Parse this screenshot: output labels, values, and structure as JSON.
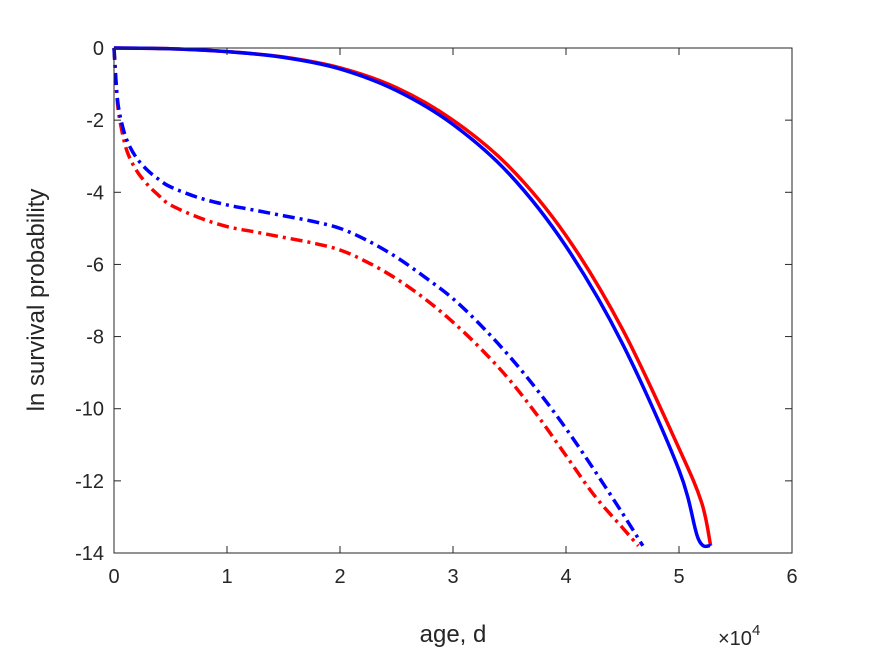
{
  "chart_data": {
    "type": "line",
    "title": "",
    "xlabel": "age, d",
    "ylabel": "ln survival probability",
    "x_exponent_label": "×10",
    "x_exponent_power": "4",
    "xlim": [
      0,
      60000
    ],
    "ylim": [
      -14,
      0
    ],
    "grid": false,
    "legend": "none",
    "x_ticks": [
      0,
      10000,
      20000,
      30000,
      40000,
      50000,
      60000
    ],
    "x_tick_labels": [
      "0",
      "1",
      "2",
      "3",
      "4",
      "5",
      "6"
    ],
    "y_ticks": [
      0,
      -2,
      -4,
      -6,
      -8,
      -10,
      -12,
      -14
    ],
    "y_tick_labels": [
      "0",
      "-2",
      "-4",
      "-6",
      "-8",
      "-10",
      "-12",
      "-14"
    ],
    "series": [
      {
        "color": "#ff0000",
        "style": "solid",
        "x": [
          0,
          5000,
          10000,
          15000,
          20000,
          25000,
          30000,
          35000,
          40000,
          45000,
          50000,
          52000,
          52800
        ],
        "y": [
          0,
          -0.02,
          -0.1,
          -0.25,
          -0.55,
          -1.1,
          -2.0,
          -3.3,
          -5.2,
          -7.8,
          -11.1,
          -12.6,
          -13.8
        ]
      },
      {
        "color": "#0000ff",
        "style": "solid",
        "x": [
          0,
          5000,
          10000,
          15000,
          20000,
          25000,
          30000,
          35000,
          40000,
          45000,
          50000,
          51700,
          52800
        ],
        "y": [
          0,
          -0.02,
          -0.1,
          -0.26,
          -0.58,
          -1.18,
          -2.12,
          -3.5,
          -5.5,
          -8.2,
          -11.7,
          -13.6,
          -13.8
        ]
      },
      {
        "color": "#ff0000",
        "style": "dashdot",
        "x": [
          0,
          300,
          700,
          1200,
          2000,
          3000,
          4000,
          5000,
          7500,
          10000,
          12500,
          15000,
          17500,
          20000,
          22500,
          25000,
          27500,
          30000,
          32500,
          35000,
          37500,
          40000,
          42500,
          45000,
          46400
        ],
        "y": [
          0,
          -1.5,
          -2.3,
          -2.9,
          -3.4,
          -3.8,
          -4.1,
          -4.35,
          -4.7,
          -4.95,
          -5.1,
          -5.25,
          -5.4,
          -5.6,
          -5.95,
          -6.4,
          -6.95,
          -7.6,
          -8.35,
          -9.2,
          -10.2,
          -11.3,
          -12.4,
          -13.3,
          -13.8
        ]
      },
      {
        "color": "#0000ff",
        "style": "dashdot",
        "x": [
          0,
          300,
          700,
          1200,
          2000,
          3000,
          4000,
          5000,
          7500,
          10000,
          12500,
          15000,
          17500,
          20000,
          22500,
          25000,
          27500,
          30000,
          32500,
          35000,
          37500,
          40000,
          42500,
          45000,
          46800
        ],
        "y": [
          0,
          -1.4,
          -2.1,
          -2.6,
          -3.05,
          -3.4,
          -3.65,
          -3.85,
          -4.15,
          -4.35,
          -4.5,
          -4.65,
          -4.8,
          -5.0,
          -5.35,
          -5.8,
          -6.35,
          -6.95,
          -7.7,
          -8.55,
          -9.5,
          -10.55,
          -11.7,
          -12.9,
          -13.8
        ]
      }
    ]
  }
}
